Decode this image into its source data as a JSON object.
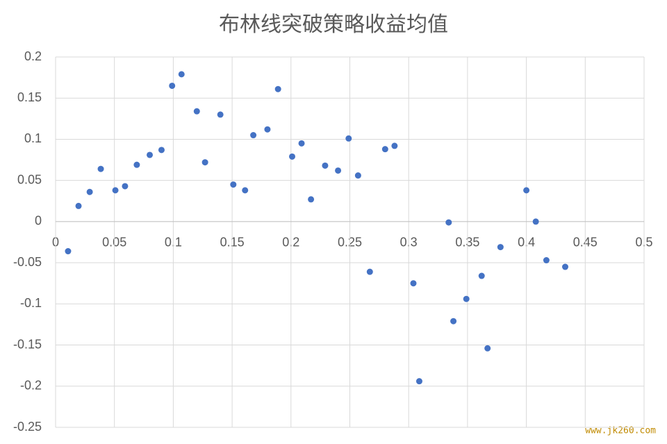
{
  "chart_data": {
    "type": "scatter",
    "title": "布林线突破策略收益均值",
    "x": [
      0.0106,
      0.0195,
      0.029,
      0.0384,
      0.0508,
      0.059,
      0.069,
      0.08,
      0.09,
      0.099,
      0.107,
      0.12,
      0.127,
      0.14,
      0.151,
      0.161,
      0.168,
      0.18,
      0.189,
      0.201,
      0.209,
      0.217,
      0.229,
      0.24,
      0.249,
      0.257,
      0.267,
      0.28,
      0.288,
      0.304,
      0.309,
      0.334,
      0.338,
      0.349,
      0.362,
      0.367,
      0.378,
      0.4,
      0.408,
      0.417,
      0.433
    ],
    "values": [
      -0.036,
      0.019,
      0.036,
      0.064,
      0.038,
      0.043,
      0.069,
      0.081,
      0.087,
      0.165,
      0.179,
      0.134,
      0.072,
      0.13,
      0.045,
      0.038,
      0.105,
      0.112,
      0.161,
      0.079,
      0.095,
      0.027,
      0.068,
      0.062,
      0.101,
      0.056,
      -0.061,
      0.088,
      0.092,
      -0.075,
      -0.194,
      -0.001,
      -0.121,
      -0.094,
      -0.066,
      -0.154,
      -0.031,
      0.038,
      0.0,
      -0.047,
      -0.055
    ],
    "color": "#4472c4",
    "xlim": [
      0,
      0.5
    ],
    "xticks": [
      0,
      0.05,
      0.1,
      0.15,
      0.2,
      0.25,
      0.3,
      0.35,
      0.4,
      0.45,
      0.5
    ],
    "ylim": [
      -0.25,
      0.2
    ],
    "yticks": [
      0.2,
      0.15,
      0.1,
      0.05,
      0,
      -0.05,
      -0.1,
      -0.15,
      -0.2,
      -0.25
    ],
    "grid": true
  },
  "watermark": "www.jk260.com"
}
